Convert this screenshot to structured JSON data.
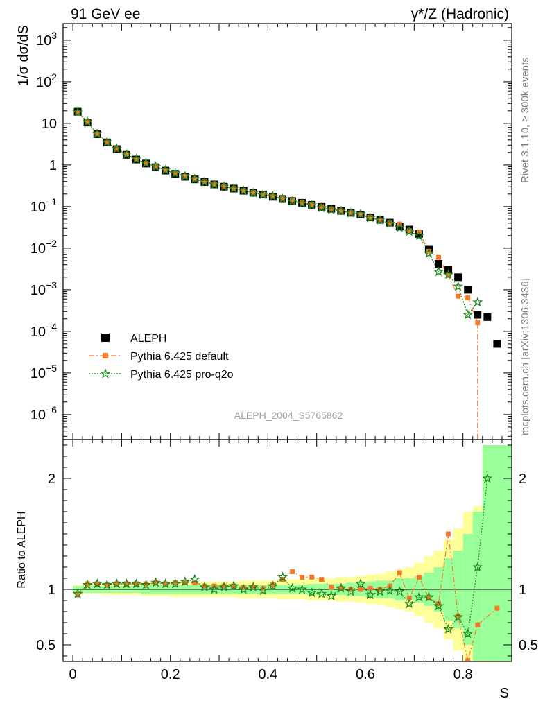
{
  "header": {
    "left": "91 GeV ee",
    "right": "γ*/Z (Hadronic)"
  },
  "side_labels": {
    "rivet": "Rivet 3.1.10, ≥ 300k events",
    "mcplots": "mcplots.cern.ch [arXiv:1306.3436]"
  },
  "analysis_id": "ALEPH_2004_S5765862",
  "chart_data": [
    {
      "type": "scatter",
      "panel": "main",
      "ylabel": "1/σ dσ/dS",
      "xlabel": "S",
      "xlim": [
        -0.02,
        0.9
      ],
      "ylim": [
        2.5e-07,
        2500
      ],
      "yscale": "log",
      "y_ticks": [
        {
          "v": 1000,
          "m": "10",
          "e": "3"
        },
        {
          "v": 100,
          "m": "10",
          "e": "2"
        },
        {
          "v": 10,
          "m": "10",
          "e": ""
        },
        {
          "v": 1,
          "m": "1",
          "e": ""
        },
        {
          "v": 0.1,
          "m": "10",
          "e": "−1"
        },
        {
          "v": 0.01,
          "m": "10",
          "e": "−2"
        },
        {
          "v": 0.001,
          "m": "10",
          "e": "−3"
        },
        {
          "v": 0.0001,
          "m": "10",
          "e": "−4"
        },
        {
          "v": 1e-05,
          "m": "10",
          "e": "−5"
        },
        {
          "v": 1e-06,
          "m": "10",
          "e": "−6"
        }
      ],
      "x": [
        0.01,
        0.03,
        0.05,
        0.07,
        0.09,
        0.11,
        0.13,
        0.15,
        0.17,
        0.19,
        0.21,
        0.23,
        0.25,
        0.27,
        0.29,
        0.31,
        0.33,
        0.35,
        0.37,
        0.39,
        0.41,
        0.43,
        0.45,
        0.47,
        0.49,
        0.51,
        0.53,
        0.55,
        0.57,
        0.59,
        0.61,
        0.63,
        0.65,
        0.67,
        0.69,
        0.71,
        0.73,
        0.75,
        0.77,
        0.79,
        0.81,
        0.83,
        0.85,
        0.87,
        0.89
      ],
      "series": [
        {
          "name": "ALEPH",
          "color": "#000000",
          "marker": "square",
          "values": [
            19,
            10.5,
            5.5,
            3.5,
            2.4,
            1.75,
            1.35,
            1.08,
            0.88,
            0.73,
            0.61,
            0.52,
            0.45,
            0.39,
            0.34,
            0.3,
            0.27,
            0.24,
            0.215,
            0.195,
            0.172,
            0.152,
            0.136,
            0.123,
            0.11,
            0.098,
            0.088,
            0.079,
            0.071,
            0.064,
            0.055,
            0.048,
            0.041,
            0.033,
            0.028,
            0.022,
            0.0092,
            0.0042,
            0.003,
            0.002,
            0.001,
            0.00025,
            0.00022,
            5e-05,
            null
          ]
        },
        {
          "name": "Pythia 6.425 default",
          "color": "#f5782a",
          "marker": "square-small",
          "line": "dashdot",
          "values": [
            18,
            10.9,
            5.6,
            3.5,
            2.42,
            1.78,
            1.37,
            1.1,
            0.9,
            0.74,
            0.62,
            0.53,
            0.46,
            0.4,
            0.35,
            0.305,
            0.273,
            0.243,
            0.218,
            0.198,
            0.176,
            0.157,
            0.141,
            0.127,
            0.113,
            0.099,
            0.088,
            0.079,
            0.071,
            0.064,
            0.055,
            0.047,
            0.04,
            0.038,
            0.026,
            0.0245,
            0.0084,
            0.006,
            0.0022,
            0.0007,
            0.00065,
            0.00016,
            null,
            null,
            null
          ]
        },
        {
          "name": "Pythia 6.425 pro-q2o",
          "color": "#1a8a1a",
          "marker": "star",
          "line": "dotted",
          "values": [
            18.5,
            10.8,
            5.6,
            3.5,
            2.45,
            1.8,
            1.38,
            1.1,
            0.91,
            0.75,
            0.63,
            0.54,
            0.46,
            0.39,
            0.34,
            0.3,
            0.27,
            0.24,
            0.213,
            0.193,
            0.177,
            0.153,
            0.133,
            0.12,
            0.108,
            0.093,
            0.083,
            0.078,
            0.07,
            0.066,
            0.053,
            0.047,
            0.039,
            0.031,
            0.025,
            0.02,
            0.0075,
            0.0027,
            0.0023,
            0.0012,
            0.00025,
            0.0005,
            null,
            null,
            null
          ]
        }
      ],
      "legend": "lower-left"
    },
    {
      "type": "scatter",
      "panel": "ratio",
      "ylabel": "Ratio to ALEPH",
      "xlabel": "S",
      "xlim": [
        -0.02,
        0.9
      ],
      "ylim": [
        0.35,
        2.35
      ],
      "y_ticks": [
        0.5,
        1,
        2
      ],
      "x_ticks": [
        0,
        0.2,
        0.4,
        0.6,
        0.8
      ],
      "x": [
        0.01,
        0.03,
        0.05,
        0.07,
        0.09,
        0.11,
        0.13,
        0.15,
        0.17,
        0.19,
        0.21,
        0.23,
        0.25,
        0.27,
        0.29,
        0.31,
        0.33,
        0.35,
        0.37,
        0.39,
        0.41,
        0.43,
        0.45,
        0.47,
        0.49,
        0.51,
        0.53,
        0.55,
        0.57,
        0.59,
        0.61,
        0.63,
        0.65,
        0.67,
        0.69,
        0.71,
        0.73,
        0.75,
        0.77,
        0.79,
        0.81,
        0.83,
        0.85,
        0.87,
        0.89
      ],
      "band_inner": [
        0.03,
        0.03,
        0.03,
        0.03,
        0.03,
        0.03,
        0.03,
        0.04,
        0.04,
        0.04,
        0.04,
        0.04,
        0.04,
        0.04,
        0.04,
        0.04,
        0.04,
        0.04,
        0.04,
        0.04,
        0.04,
        0.04,
        0.04,
        0.04,
        0.05,
        0.05,
        0.05,
        0.05,
        0.06,
        0.06,
        0.07,
        0.08,
        0.08,
        0.1,
        0.1,
        0.12,
        0.15,
        0.2,
        0.28,
        0.35,
        0.5,
        0.7,
        1.3,
        1.3,
        1.3
      ],
      "band_outer": [
        0.04,
        0.04,
        0.04,
        0.05,
        0.05,
        0.05,
        0.05,
        0.06,
        0.06,
        0.06,
        0.07,
        0.07,
        0.07,
        0.07,
        0.07,
        0.07,
        0.07,
        0.08,
        0.08,
        0.08,
        0.08,
        0.09,
        0.09,
        0.09,
        0.1,
        0.1,
        0.1,
        0.11,
        0.11,
        0.12,
        0.13,
        0.14,
        0.16,
        0.18,
        0.2,
        0.24,
        0.3,
        0.35,
        0.45,
        0.55,
        0.7,
        0.75,
        1.3,
        1.3,
        1.3
      ],
      "series": [
        {
          "name": "Pythia 6.425 default",
          "color": "#f5782a",
          "values": [
            0.95,
            1.05,
            1.05,
            1.04,
            1.05,
            1.05,
            1.05,
            1.05,
            1.06,
            1.05,
            1.06,
            1.06,
            1.06,
            1.03,
            1.03,
            1.03,
            1.03,
            1.02,
            1.02,
            1.01,
            1.04,
            1.09,
            1.16,
            1.11,
            1.11,
            1.09,
            1.02,
            1.01,
            1.0,
            1.0,
            1.01,
            1.0,
            1.03,
            1.15,
            0.92,
            1.11,
            0.92,
            0.87,
            1.5,
            0.76,
            0.36,
            0.68,
            null,
            0.83,
            null
          ]
        },
        {
          "name": "Pythia 6.425 pro-q2o",
          "color": "#1a8a1a",
          "values": [
            0.96,
            1.04,
            1.05,
            1.04,
            1.05,
            1.05,
            1.05,
            1.04,
            1.06,
            1.05,
            1.05,
            1.07,
            1.09,
            1.02,
            1.0,
            1.02,
            1.03,
            1.0,
            1.02,
            0.99,
            1.03,
            1.11,
            1.01,
            1.0,
            0.97,
            0.96,
            0.94,
            1.01,
            0.98,
            1.05,
            0.95,
            0.98,
            0.99,
            0.98,
            0.87,
            0.93,
            0.93,
            0.85,
            0.64,
            0.75,
            0.6,
            1.2,
            2.0,
            null,
            null
          ]
        }
      ]
    }
  ]
}
